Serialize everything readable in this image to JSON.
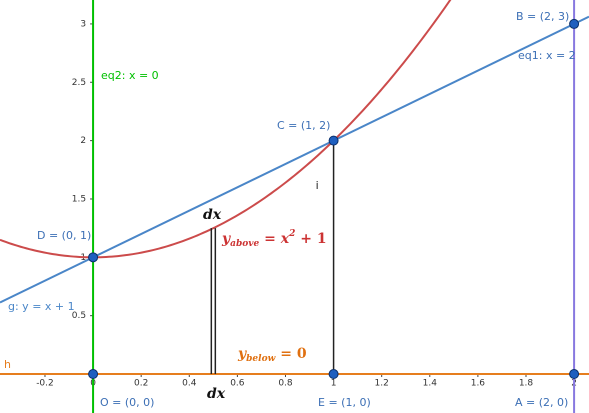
{
  "chart_data": {
    "type": "function-plot",
    "xlim": [
      -0.387,
      2.062
    ],
    "ylim": [
      -0.334,
      3.205
    ],
    "xticks": [
      -0.2,
      0,
      0.2,
      0.4,
      0.6,
      0.8,
      1,
      1.2,
      1.4,
      1.6,
      1.8,
      2
    ],
    "yticks": [
      0.5,
      1,
      1.5,
      2,
      2.5,
      3
    ],
    "curves": [
      {
        "color": "#cc4b4b",
        "coefficients": [
          1,
          0,
          1
        ]
      }
    ],
    "lines": [
      {
        "label": "g: y = x + 1",
        "color": "#4a86c8",
        "slope": 1,
        "intercept": 1
      }
    ],
    "vertical_lines": [
      {
        "label": "eq2: x = 0",
        "color": "#00c000",
        "x": 0
      },
      {
        "label": "eq1: x = 2",
        "color": "#8878e0",
        "x": 2
      }
    ],
    "horizontal_lines": [
      {
        "label": "h",
        "color": "#e67e1e",
        "y": 0
      }
    ],
    "segments": [
      {
        "label": "i",
        "color": "#222222",
        "x": 1,
        "from_y": 0,
        "to_y": 2
      },
      {
        "color": "#222222",
        "x": 0.5,
        "from_y": 0,
        "to_y": 1.25,
        "double": true
      }
    ],
    "points": [
      {
        "label": "A = (2, 0)",
        "x": 2,
        "y": 0
      },
      {
        "label": "B = (2, 3)",
        "x": 2,
        "y": 3
      },
      {
        "label": "C = (1, 2)",
        "x": 1,
        "y": 2
      },
      {
        "label": "D = (0, 1)",
        "x": 0,
        "y": 1
      },
      {
        "label": "E = (1, 0)",
        "x": 1,
        "y": 0
      },
      {
        "label": "O = (0, 0)",
        "x": 0,
        "y": 0
      }
    ],
    "annotations": [
      {
        "color": "#111111",
        "parts": [
          {
            "text": "dx"
          }
        ]
      },
      {
        "color": "#111111",
        "parts": [
          {
            "text": "dx"
          }
        ]
      },
      {
        "color": "#cc3333",
        "parts": [
          {
            "text": "y"
          },
          {
            "text": "above",
            "sub": true
          },
          {
            "text": " = "
          },
          {
            "text": "x"
          },
          {
            "text": "2",
            "sup": true
          },
          {
            "text": " + 1"
          }
        ]
      },
      {
        "color": "#e07010",
        "parts": [
          {
            "text": "y"
          },
          {
            "text": "below",
            "sub": true
          },
          {
            "text": " = 0"
          }
        ]
      }
    ]
  }
}
